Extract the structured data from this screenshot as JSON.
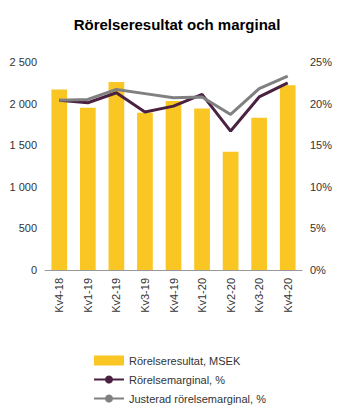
{
  "chart_data": {
    "type": "bar",
    "title": "Rörelseresultat och marginal",
    "categories": [
      "Kv4-18",
      "Kv1-19",
      "Kv2-19",
      "Kv3-19",
      "Kv4-19",
      "Kv1-20",
      "Kv2-20",
      "Kv3-20",
      "Kv4-20"
    ],
    "series": [
      {
        "name": "Rörelseresultat, MSEK",
        "type": "bar",
        "color": "#F9C623",
        "values": [
          2170,
          1950,
          2260,
          1890,
          2030,
          1940,
          1420,
          1830,
          2220
        ]
      },
      {
        "name": "Rörelsemarginal, %",
        "type": "line",
        "axis": "y2",
        "color": "#4B2142",
        "values": [
          20.4,
          20.1,
          21.3,
          19.0,
          19.7,
          21.1,
          16.7,
          20.8,
          22.5
        ]
      },
      {
        "name": "Justerad rörelsemarginal, %",
        "type": "line",
        "axis": "y2",
        "color": "#808080",
        "values": [
          20.4,
          20.5,
          21.7,
          21.2,
          20.7,
          20.8,
          18.7,
          21.8,
          23.3
        ]
      }
    ],
    "ylim": [
      0,
      2500
    ],
    "yticks": [
      0,
      500,
      {
        "value": 1000,
        "label": "1 000"
      },
      {
        "value": 1500,
        "label": "1 500"
      },
      {
        "value": 2000,
        "label": "2 000"
      },
      {
        "value": 2500,
        "label": "2 500"
      }
    ],
    "y2lim": [
      0,
      25
    ],
    "y2ticks": [
      {
        "value": 0,
        "label": "0%"
      },
      {
        "value": 5,
        "label": "5%"
      },
      {
        "value": 10,
        "label": "10%"
      },
      {
        "value": 15,
        "label": "15%"
      },
      {
        "value": 20,
        "label": "20%"
      },
      {
        "value": 25,
        "label": "25%"
      }
    ],
    "grid": false,
    "legend": "bottom"
  }
}
